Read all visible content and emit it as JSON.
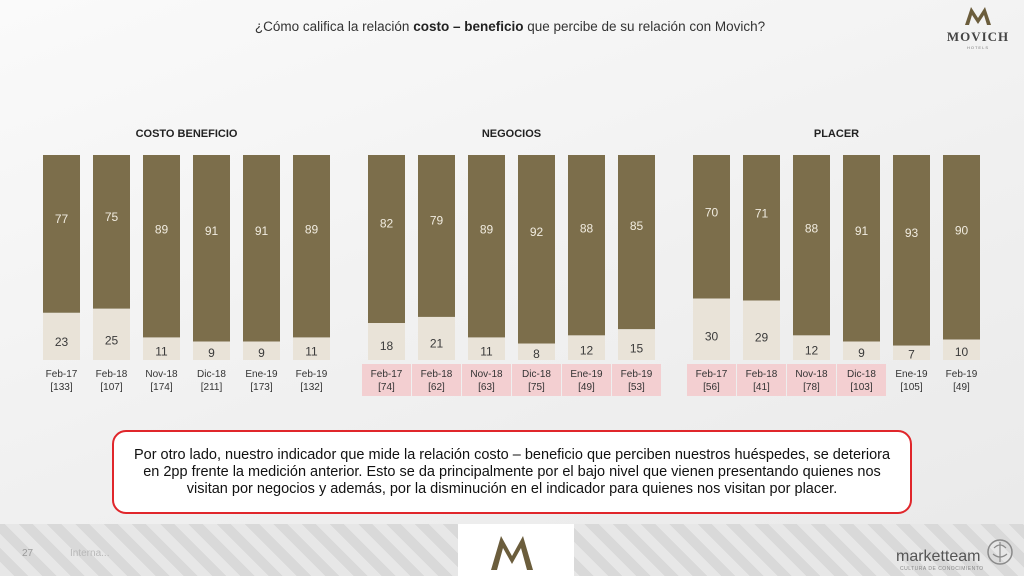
{
  "header": {
    "title_pre": "¿Cómo califica la relación ",
    "title_bold": "costo – beneficio",
    "title_post": " que percibe de su relación con Movich?"
  },
  "logo": {
    "word": "MOVICH",
    "sub": "HOTELS"
  },
  "colors": {
    "top": "#7c6e4b",
    "bottom": "#e9e3d8",
    "highlight": "#f3cfd1",
    "callout_border": "#e0262b"
  },
  "chart_data": [
    {
      "type": "bar",
      "stacked": true,
      "title": "COSTO BENEFICIO",
      "categories": [
        "Feb-17",
        "Feb-18",
        "Nov-18",
        "Dic-18",
        "Ene-19",
        "Feb-19"
      ],
      "bases": [
        "[133]",
        "[107]",
        "[174]",
        "[211]",
        "[173]",
        "[132]"
      ],
      "highlight": [],
      "series": [
        {
          "values": [
            77,
            75,
            89,
            91,
            91,
            89
          ]
        },
        {
          "values": [
            23,
            25,
            11,
            9,
            9,
            11
          ]
        }
      ],
      "ylim": [
        0,
        100
      ]
    },
    {
      "type": "bar",
      "stacked": true,
      "title": "NEGOCIOS",
      "categories": [
        "Feb-17",
        "Feb-18",
        "Nov-18",
        "Dic-18",
        "Ene-19",
        "Feb-19"
      ],
      "bases": [
        "[74]",
        "[62]",
        "[63]",
        "[75]",
        "[49]",
        "[53]"
      ],
      "highlight": [
        0,
        1,
        2,
        3,
        4,
        5
      ],
      "series": [
        {
          "values": [
            82,
            79,
            89,
            92,
            88,
            85
          ]
        },
        {
          "values": [
            18,
            21,
            11,
            8,
            12,
            15
          ]
        }
      ],
      "ylim": [
        0,
        100
      ]
    },
    {
      "type": "bar",
      "stacked": true,
      "title": "PLACER",
      "categories": [
        "Feb-17",
        "Feb-18",
        "Nov-18",
        "Dic-18",
        "Ene-19",
        "Feb-19"
      ],
      "bases": [
        "[56]",
        "[41]",
        "[78]",
        "[103]",
        "[105]",
        "[49]"
      ],
      "highlight": [
        0,
        1,
        2,
        3
      ],
      "series": [
        {
          "values": [
            70,
            71,
            88,
            91,
            93,
            90
          ]
        },
        {
          "values": [
            30,
            29,
            12,
            9,
            7,
            10
          ]
        }
      ],
      "ylim": [
        0,
        100
      ]
    }
  ],
  "callout": {
    "text": "Por otro lado, nuestro indicador que mide la relación costo – beneficio que perciben nuestros huéspedes, se deteriora en 2pp frente la medición anterior. Esto se da principalmente por el bajo nivel que vienen presentando quienes nos visitan por negocios y además, por la disminución en el indicador para quienes nos visitan por placer."
  },
  "footer": {
    "page_number": "27",
    "note": "Interna...",
    "brand": "marketteam",
    "brand_sub": "CULTURA DE CONOCIMIENTO"
  }
}
